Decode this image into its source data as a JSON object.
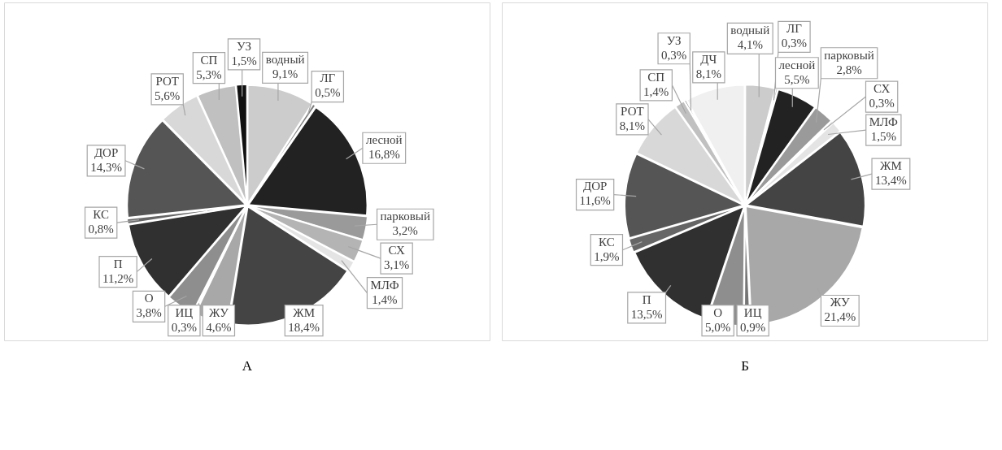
{
  "chart_data": [
    {
      "type": "pie",
      "title": "А",
      "categories": [
        "водный",
        "ЛГ",
        "лесной",
        "парковый",
        "СХ",
        "МЛФ",
        "ЖМ",
        "ЖУ",
        "ИЦ",
        "О",
        "П",
        "КС",
        "ДОР",
        "РОТ",
        "СП",
        "УЗ"
      ],
      "values": [
        9.1,
        0.5,
        16.8,
        3.2,
        3.1,
        1.4,
        18.4,
        4.6,
        0.3,
        3.8,
        11.2,
        0.8,
        14.3,
        5.6,
        5.3,
        1.5
      ],
      "value_labels": [
        "9,1%",
        "0,5%",
        "16,8%",
        "3,2%",
        "3,1%",
        "1,4%",
        "18,4%",
        "4,6%",
        "0,3%",
        "3,8%",
        "11,2%",
        "0,8%",
        "14,3%",
        "5,6%",
        "5,3%",
        "1,5%"
      ],
      "colors": [
        "#cccccc",
        "#808080",
        "#222222",
        "#9a9a9a",
        "#b4b4b4",
        "#e4e4e4",
        "#444444",
        "#a8a8a8",
        "#747474",
        "#8e8e8e",
        "#303030",
        "#666666",
        "#555555",
        "#d8d8d8",
        "#c0c0c0",
        "#111111"
      ],
      "legend": false
    },
    {
      "type": "pie",
      "title": "Б",
      "categories": [
        "водный",
        "ЛГ",
        "лесной",
        "парковый",
        "СХ",
        "МЛФ",
        "ЖМ",
        "ЖУ",
        "ИЦ",
        "О",
        "П",
        "КС",
        "ДОР",
        "РОТ",
        "СП",
        "УЗ",
        "ДЧ"
      ],
      "values": [
        4.1,
        0.3,
        5.5,
        2.8,
        0.3,
        1.5,
        13.4,
        21.4,
        0.9,
        5.0,
        13.5,
        1.9,
        11.6,
        8.1,
        1.4,
        0.3,
        8.1
      ],
      "value_labels": [
        "4,1%",
        "0,3%",
        "5,5%",
        "2,8%",
        "0,3%",
        "1,5%",
        "13,4%",
        "21,4%",
        "0,9%",
        "5,0%",
        "13,5%",
        "1,9%",
        "11,6%",
        "8,1%",
        "1,4%",
        "0,3%",
        "8,1%"
      ],
      "colors": [
        "#cccccc",
        "#808080",
        "#222222",
        "#9a9a9a",
        "#b4b4b4",
        "#e4e4e4",
        "#444444",
        "#a8a8a8",
        "#747474",
        "#8e8e8e",
        "#303030",
        "#666666",
        "#555555",
        "#d8d8d8",
        "#c0c0c0",
        "#111111",
        "#f0f0f0"
      ],
      "legend": false
    }
  ]
}
